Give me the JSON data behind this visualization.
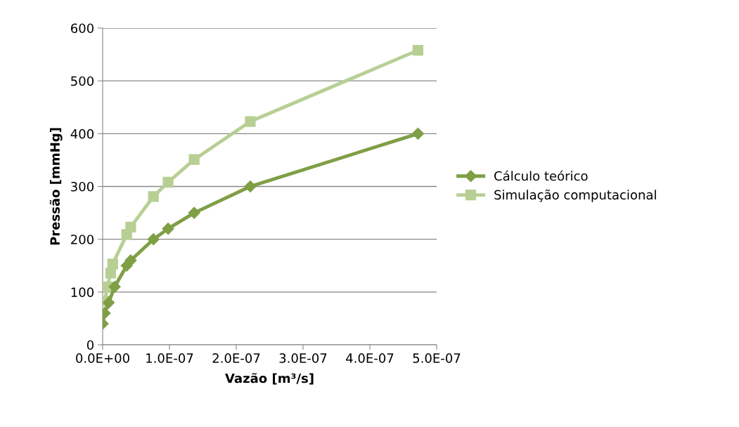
{
  "chart_data": {
    "type": "line",
    "xlabel": "Vazão [m³/s]",
    "ylabel": "Pressão [mmHg]",
    "xlim": [
      0,
      5e-07
    ],
    "xticks": [
      {
        "value": 0,
        "label": "0.0E+00"
      },
      {
        "value": 1e-07,
        "label": "1.0E-07"
      },
      {
        "value": 2e-07,
        "label": "2.0E-07"
      },
      {
        "value": 3e-07,
        "label": "3.0E-07"
      },
      {
        "value": 4e-07,
        "label": "4.0E-07"
      },
      {
        "value": 5e-07,
        "label": "5.0E-07"
      }
    ],
    "ylim": [
      0,
      600
    ],
    "yticks": [
      0,
      100,
      200,
      300,
      400,
      500,
      600
    ],
    "grid": "y",
    "legend": "right",
    "line_style": "solid",
    "series": [
      {
        "name": "Cálculo teórico",
        "color": "#7f9f45",
        "marker": "diamond",
        "x": [
          0,
          3e-09,
          9e-09,
          1.8e-08,
          3.6e-08,
          4.2e-08,
          7.6e-08,
          9.8e-08,
          1.37e-07,
          2.21e-07,
          4.72e-07
        ],
        "values": [
          40,
          60,
          80,
          110,
          150,
          160,
          200,
          220,
          250,
          300,
          400
        ]
      },
      {
        "name": "Simulação computacional",
        "color": "#b8cf94",
        "marker": "square",
        "x": [
          3e-09,
          7e-09,
          1.2e-08,
          1.5e-08,
          3.6e-08,
          4.2e-08,
          7.6e-08,
          9.8e-08,
          1.37e-07,
          2.21e-07,
          4.72e-07
        ],
        "values": [
          83,
          110,
          136,
          153,
          209,
          223,
          281,
          308,
          351,
          423,
          558
        ]
      }
    ]
  }
}
